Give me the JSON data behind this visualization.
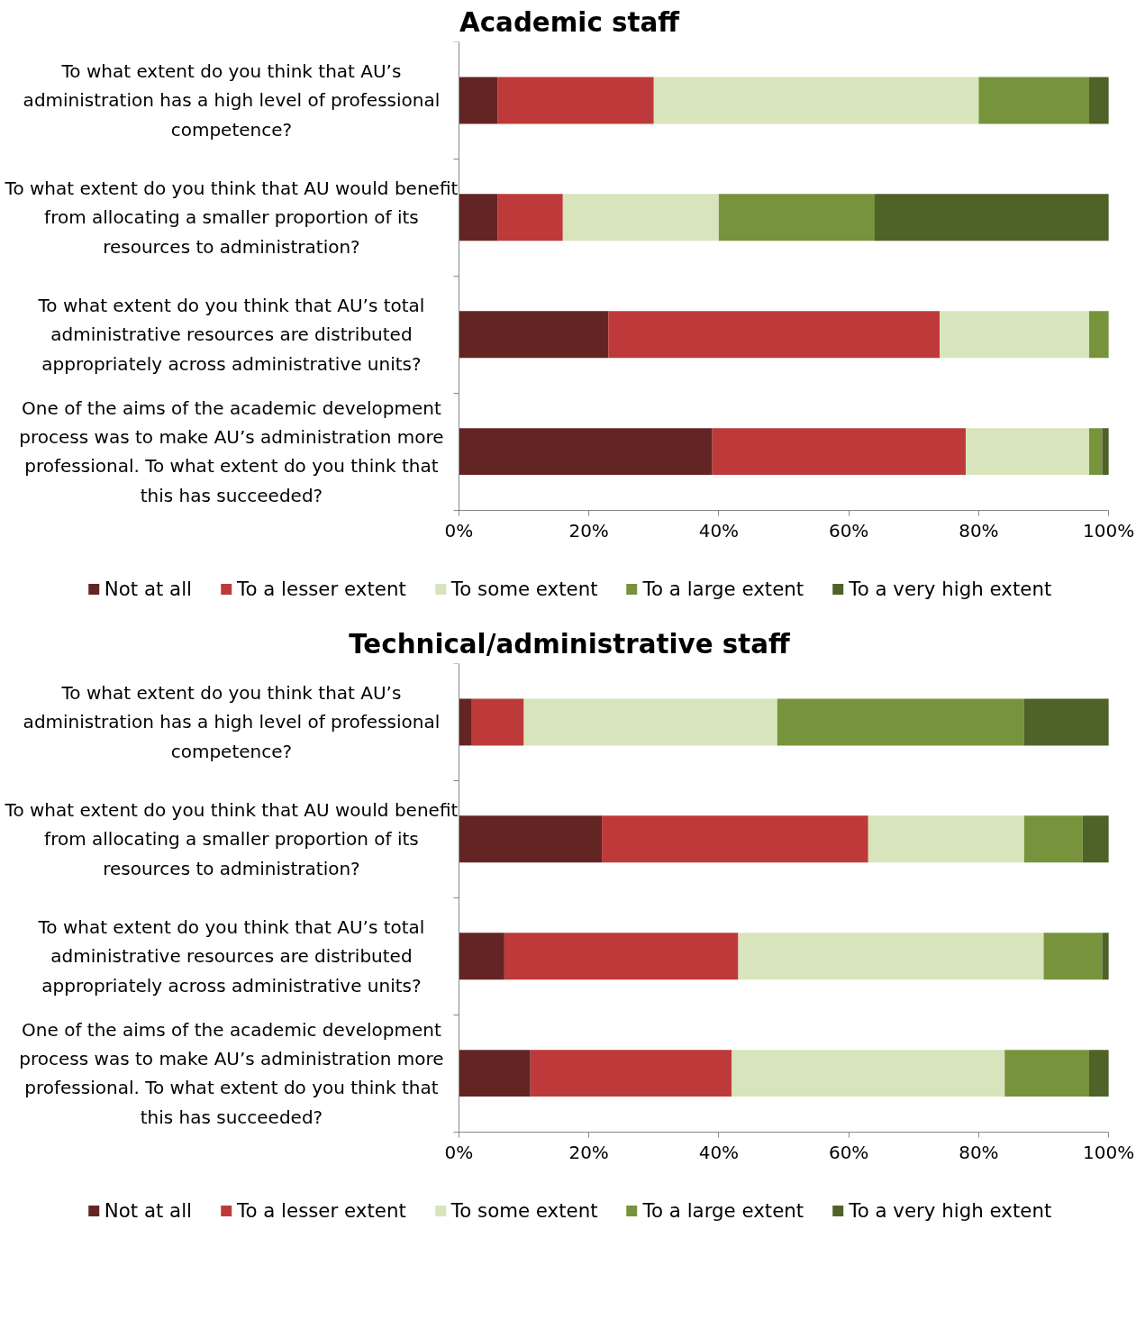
{
  "chart_data": [
    {
      "type": "bar",
      "orientation": "horizontal",
      "stacked": true,
      "title": "Academic staff",
      "categories": [
        "To what extent do you think that AU’s administration has a high level of professional competence?",
        "To what extent do you think that AU would benefit from allocating a smaller proportion of its resources to administration?",
        "To what extent do you think that AU’s total administrative resources are distributed appropriately across administrative units?",
        "One of the aims of the academic development process was to make AU’s administration more professional. To what extent do you think that this has succeeded?"
      ],
      "series": [
        {
          "name": "Not at all",
          "color": "#632523",
          "values": [
            6,
            6,
            23,
            39
          ]
        },
        {
          "name": "To a lesser extent",
          "color": "#be3a3a",
          "values": [
            24,
            10,
            51,
            39
          ]
        },
        {
          "name": "To some extent",
          "color": "#d8e4bc",
          "values": [
            50,
            24,
            23,
            19
          ]
        },
        {
          "name": "To a large extent",
          "color": "#77933c",
          "values": [
            17,
            24,
            3,
            2
          ]
        },
        {
          "name": "To a very high extent",
          "color": "#4f6228",
          "values": [
            3,
            36,
            0,
            1
          ]
        }
      ],
      "xlim": [
        0,
        100
      ],
      "xticks": [
        {
          "value": 0,
          "label": "0%"
        },
        {
          "value": 20,
          "label": "20%"
        },
        {
          "value": 40,
          "label": "40%"
        },
        {
          "value": 60,
          "label": "60%"
        },
        {
          "value": 80,
          "label": "80%"
        },
        {
          "value": 100,
          "label": "100%"
        }
      ],
      "grid": false,
      "legend": "bottom"
    },
    {
      "type": "bar",
      "orientation": "horizontal",
      "stacked": true,
      "title": "Technical/administrative staff",
      "categories": [
        "To what extent do you think that AU’s administration has a high level of professional competence?",
        "To what extent do you think that AU would benefit from allocating a smaller proportion of its resources to administration?",
        "To what extent do you think that AU’s total administrative resources are distributed appropriately across administrative units?",
        "One of the aims of the academic development process was to make AU’s administration more professional. To what extent do you think that this has succeeded?"
      ],
      "series": [
        {
          "name": "Not at all",
          "color": "#632523",
          "values": [
            2,
            22,
            7,
            11
          ]
        },
        {
          "name": "To a lesser extent",
          "color": "#be3a3a",
          "values": [
            8,
            41,
            36,
            31
          ]
        },
        {
          "name": "To some extent",
          "color": "#d8e4bc",
          "values": [
            39,
            24,
            47,
            42
          ]
        },
        {
          "name": "To a large extent",
          "color": "#77933c",
          "values": [
            38,
            9,
            9,
            13
          ]
        },
        {
          "name": "To a very high extent",
          "color": "#4f6228",
          "values": [
            13,
            4,
            1,
            3
          ]
        }
      ],
      "xlim": [
        0,
        100
      ],
      "xticks": [
        {
          "value": 0,
          "label": "0%"
        },
        {
          "value": 20,
          "label": "20%"
        },
        {
          "value": 40,
          "label": "40%"
        },
        {
          "value": 60,
          "label": "60%"
        },
        {
          "value": 80,
          "label": "80%"
        },
        {
          "value": 100,
          "label": "100%"
        }
      ],
      "grid": false,
      "legend": "bottom"
    }
  ]
}
